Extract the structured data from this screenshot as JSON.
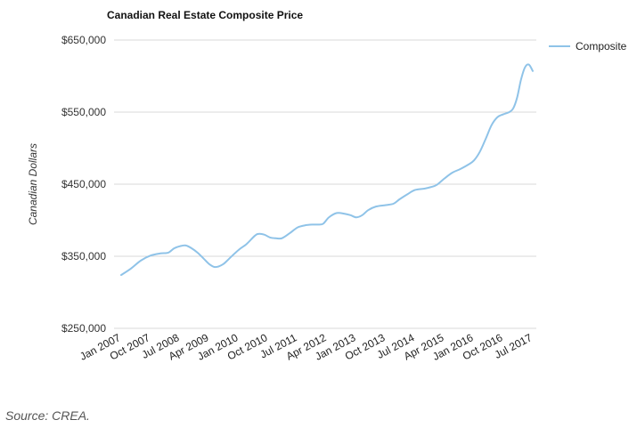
{
  "chart_data": {
    "type": "line",
    "title": "Canadian Real Estate Composite Price",
    "xlabel": "",
    "ylabel": "Canadian Dollars",
    "ylim": [
      250000,
      650000
    ],
    "yticks": [
      250000,
      350000,
      450000,
      550000,
      650000
    ],
    "ytick_labels": [
      "$250,000",
      "$350,000",
      "$450,000",
      "$550,000",
      "$650,000"
    ],
    "x_range": [
      2007.0,
      2017.5
    ],
    "xticks": [
      2007.0,
      2007.75,
      2008.5,
      2009.25,
      2010.0,
      2010.75,
      2011.5,
      2012.25,
      2013.0,
      2013.75,
      2014.5,
      2015.25,
      2016.0,
      2016.75,
      2017.5
    ],
    "xtick_labels": [
      "Jan 2007",
      "Oct 2007",
      "Jul 2008",
      "Apr 2009",
      "Jan 2010",
      "Oct 2010",
      "Jul 2011",
      "Apr 2012",
      "Jan 2013",
      "Oct 2013",
      "Jul 2014",
      "Apr 2015",
      "Jan 2016",
      "Oct 2016",
      "Jul 2017"
    ],
    "legend": "right",
    "grid": true,
    "color": "#8fc3e8",
    "series": [
      {
        "name": "Composite",
        "x": [
          2007.0,
          2007.25,
          2007.5,
          2007.75,
          2008.0,
          2008.2,
          2008.35,
          2008.5,
          2008.65,
          2008.8,
          2008.95,
          2009.1,
          2009.25,
          2009.4,
          2009.6,
          2009.8,
          2010.0,
          2010.2,
          2010.4,
          2010.5,
          2010.65,
          2010.8,
          2010.95,
          2011.1,
          2011.3,
          2011.5,
          2011.7,
          2011.9,
          2012.0,
          2012.15,
          2012.3,
          2012.5,
          2012.7,
          2012.85,
          2013.0,
          2013.15,
          2013.3,
          2013.5,
          2013.75,
          2013.95,
          2014.1,
          2014.3,
          2014.5,
          2014.75,
          2014.9,
          2015.05,
          2015.25,
          2015.45,
          2015.65,
          2015.85,
          2016.0,
          2016.15,
          2016.3,
          2016.45,
          2016.6,
          2016.75,
          2016.9,
          2017.0,
          2017.1,
          2017.2,
          2017.3,
          2017.4,
          2017.5
        ],
        "y": [
          324000,
          333000,
          344000,
          351000,
          354000,
          355000,
          361000,
          364000,
          365000,
          361000,
          355000,
          347000,
          339000,
          335000,
          339000,
          349000,
          359000,
          367000,
          378000,
          381000,
          380000,
          376000,
          375000,
          375000,
          382000,
          390000,
          393000,
          394000,
          394000,
          395000,
          404000,
          410000,
          409000,
          407000,
          404000,
          407000,
          414000,
          419000,
          421000,
          423000,
          429000,
          436000,
          442000,
          444000,
          446000,
          449000,
          458000,
          466000,
          471000,
          477000,
          483000,
          495000,
          513000,
          532000,
          543000,
          547000,
          550000,
          555000,
          570000,
          595000,
          612000,
          616000,
          607000
        ]
      }
    ]
  },
  "source": "Source: CREA."
}
